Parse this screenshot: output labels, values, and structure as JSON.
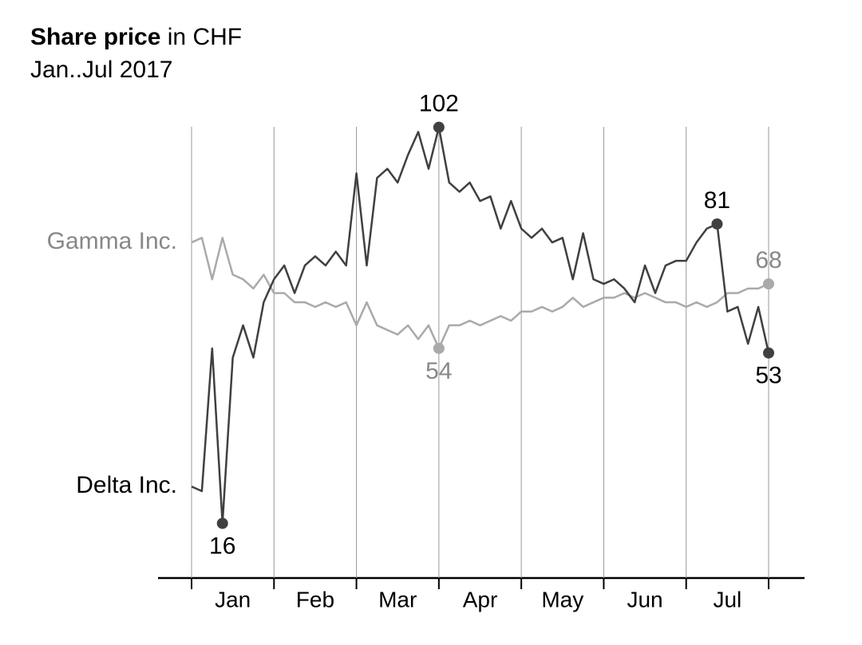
{
  "chart_data": {
    "type": "line",
    "title": {
      "bold": "Share price",
      "rest": "in CHF"
    },
    "subtitle": "Jan..Jul 2017",
    "categories": [
      null,
      null,
      null,
      null,
      "Jan",
      null,
      null,
      null,
      null,
      null,
      null,
      null,
      "Feb",
      null,
      null,
      null,
      null,
      null,
      null,
      null,
      "Mar",
      null,
      null,
      null,
      null,
      null,
      null,
      null,
      "Apr",
      null,
      null,
      null,
      null,
      null,
      null,
      null,
      "May",
      null,
      null,
      null,
      null,
      null,
      null,
      null,
      "Jun",
      null,
      null,
      null,
      null,
      null,
      null,
      null,
      "Jul",
      null,
      null,
      null,
      null
    ],
    "ylim": [
      5,
      108
    ],
    "series": [
      {
        "name": "Gamma Inc.",
        "color": "#aaaaaa",
        "label_color": "#888888",
        "values": [
          77,
          78,
          69,
          78,
          70,
          69,
          67,
          70,
          66,
          66,
          64,
          64,
          63,
          64,
          63,
          64,
          59,
          64,
          59,
          58,
          57,
          59,
          56,
          59,
          54,
          59,
          59,
          60,
          59,
          60,
          61,
          60,
          62,
          62,
          63,
          62,
          63,
          65,
          63,
          64,
          65,
          65,
          66,
          65,
          66,
          65,
          64,
          64,
          63,
          64,
          63,
          64,
          66,
          66,
          67,
          67,
          68
        ],
        "value_labels": [
          null,
          null,
          null,
          null,
          null,
          null,
          null,
          null,
          null,
          null,
          null,
          null,
          null,
          null,
          null,
          null,
          null,
          null,
          null,
          null,
          null,
          null,
          null,
          null,
          "54",
          null,
          null,
          null,
          null,
          null,
          null,
          null,
          null,
          null,
          null,
          null,
          null,
          null,
          null,
          null,
          null,
          null,
          null,
          null,
          null,
          null,
          null,
          null,
          null,
          null,
          null,
          null,
          null,
          null,
          null,
          null,
          "68"
        ]
      },
      {
        "name": "Delta Inc.",
        "color": "#404040",
        "label_color": "#000000",
        "values": [
          24,
          23,
          54,
          16,
          52,
          59,
          52,
          64,
          69,
          72,
          66,
          72,
          74,
          72,
          75,
          72,
          92,
          72,
          91,
          93,
          90,
          96,
          101,
          93,
          102,
          90,
          88,
          90,
          86,
          87,
          80,
          86,
          80,
          78,
          80,
          77,
          78,
          69,
          79,
          69,
          68,
          69,
          67,
          64,
          72,
          66,
          72,
          73,
          73,
          77,
          80,
          81,
          62,
          63,
          55,
          63,
          53
        ],
        "value_labels": [
          null,
          null,
          null,
          "16",
          null,
          null,
          null,
          null,
          null,
          null,
          null,
          null,
          null,
          null,
          null,
          null,
          null,
          null,
          null,
          null,
          null,
          null,
          null,
          null,
          "102",
          null,
          null,
          null,
          null,
          null,
          null,
          null,
          null,
          null,
          null,
          null,
          null,
          null,
          null,
          null,
          null,
          null,
          null,
          null,
          null,
          null,
          null,
          null,
          null,
          null,
          null,
          "81",
          null,
          null,
          null,
          null,
          "53"
        ]
      }
    ]
  }
}
